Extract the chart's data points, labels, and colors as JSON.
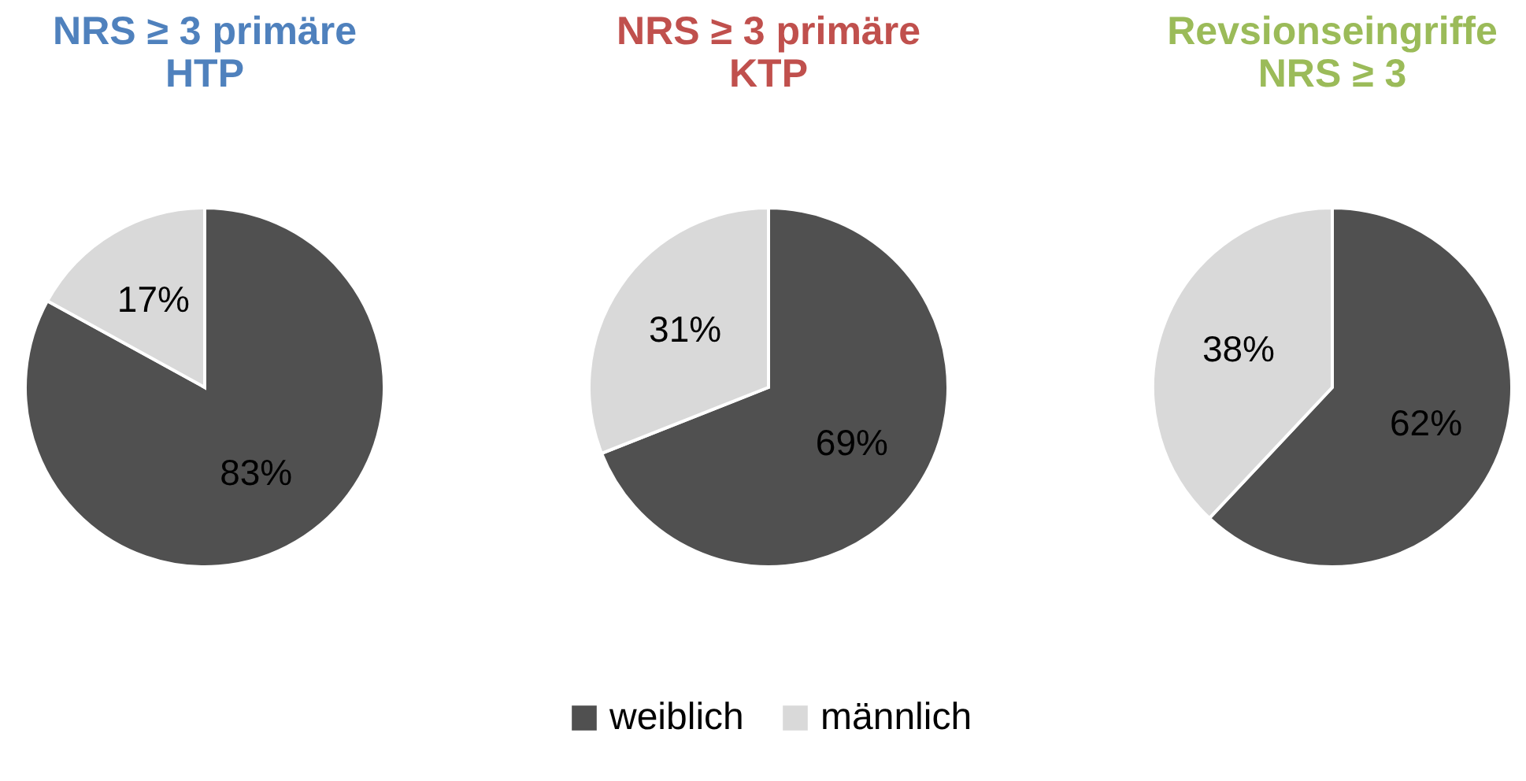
{
  "chart_data": [
    {
      "type": "pie",
      "title": "NRS ≥ 3 primäre\nHTP",
      "categories": [
        "weiblich",
        "männlich"
      ],
      "values": [
        83,
        17
      ],
      "colors": [
        "#505050",
        "#d9d9d9"
      ],
      "value_labels": [
        "83%",
        "17%"
      ],
      "legend": "bottom"
    },
    {
      "type": "pie",
      "title": "NRS ≥ 3 primäre\nKTP",
      "categories": [
        null,
        null
      ],
      "values": [
        69,
        31
      ],
      "colors": [
        "#505050",
        "#d9d9d9"
      ],
      "value_labels": [
        "69%",
        "31%"
      ]
    },
    {
      "type": "pie",
      "title": "Revsionseingriffe\nNRS ≥ 3",
      "categories": [
        null,
        null
      ],
      "values": [
        62,
        38
      ],
      "colors": [
        "#505050",
        "#d9d9d9"
      ],
      "value_labels": [
        "62%",
        "38%"
      ]
    }
  ]
}
